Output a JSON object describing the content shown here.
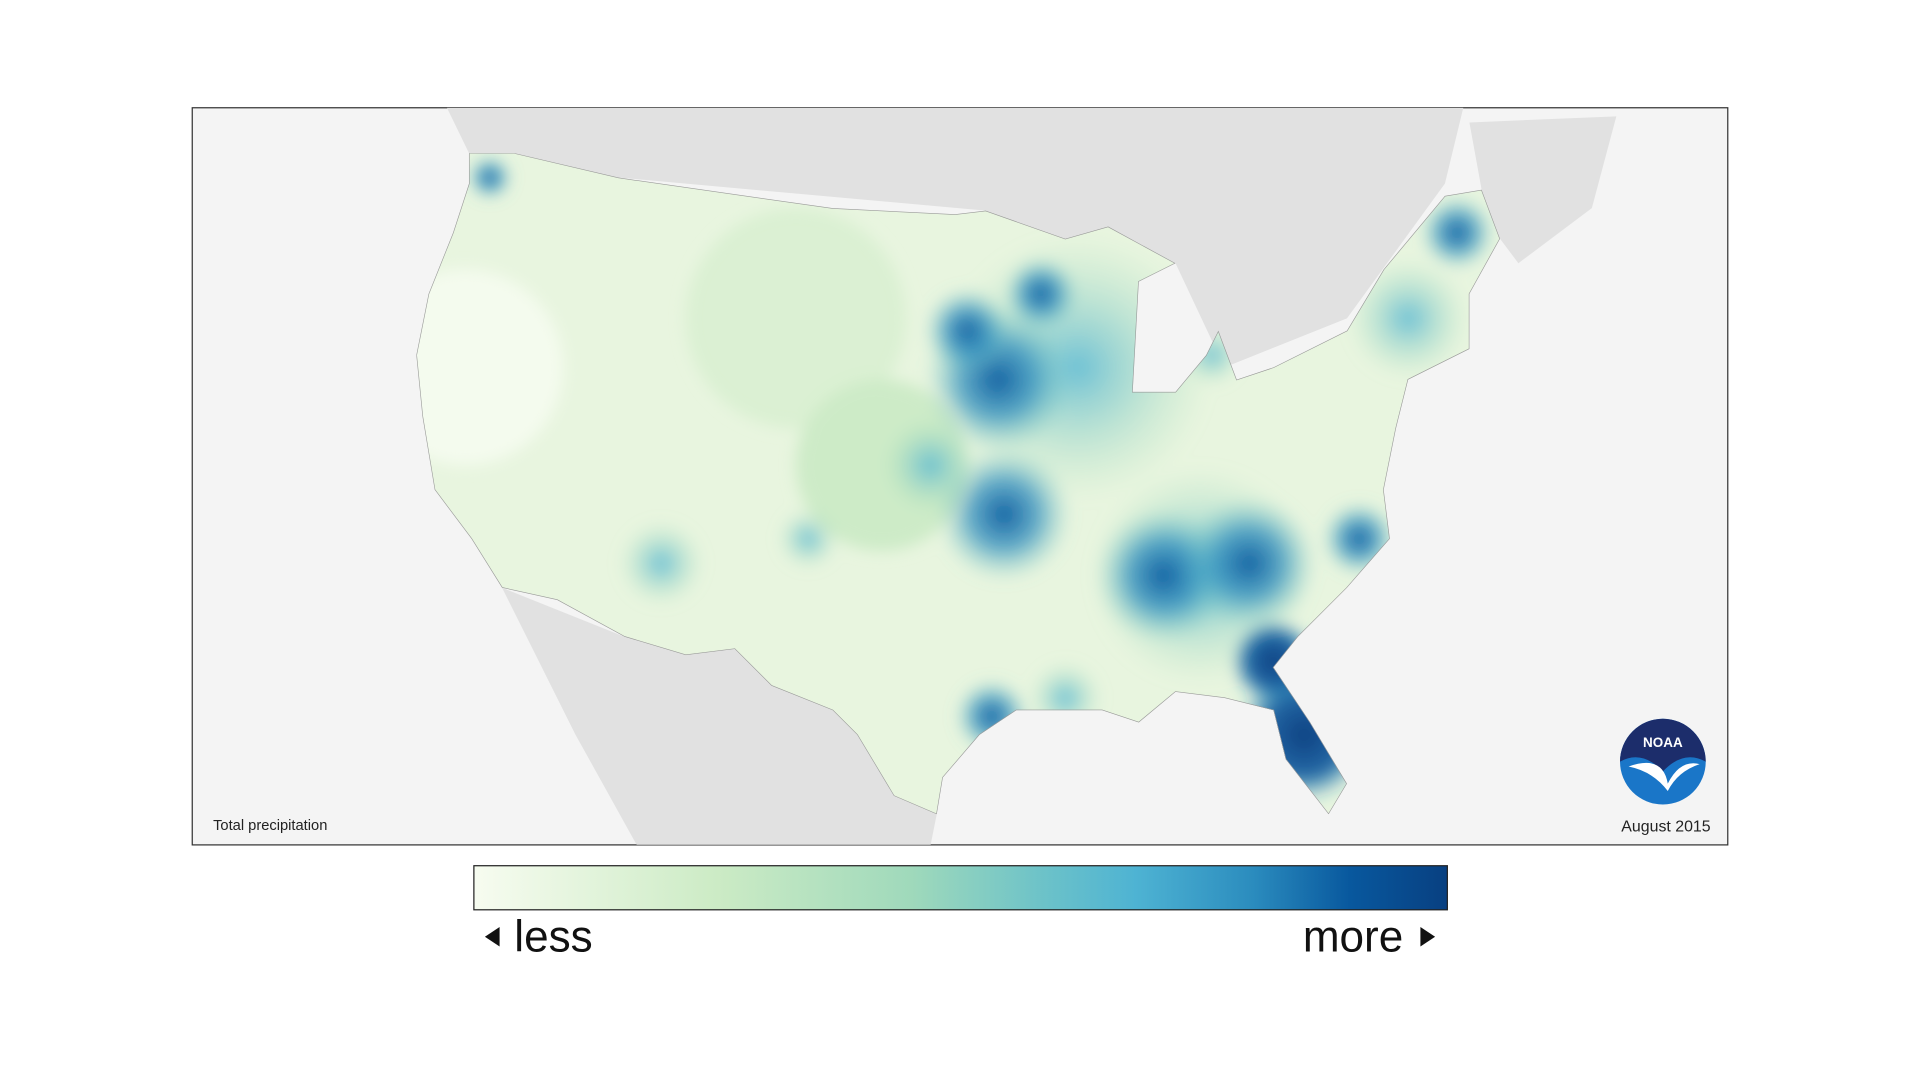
{
  "map": {
    "title": "Total precipitation",
    "date": "August 2015",
    "logo": "NOAA",
    "legend": {
      "low": "less",
      "high": "more"
    }
  }
}
